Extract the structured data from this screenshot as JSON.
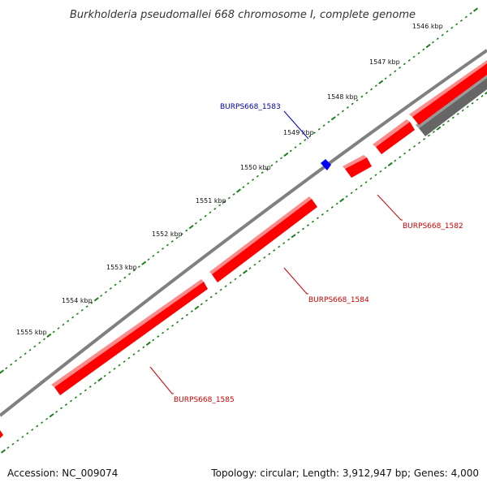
{
  "title": "Burkholderia pseudomallei 668 chromosome I, complete genome",
  "scale_labels": [
    "1546 kbp",
    "1547 kbp",
    "1548 kbp",
    "1549 kbp",
    "1550 kbp",
    "1551 kbp",
    "1552 kbp",
    "1553 kbp",
    "1554 kbp",
    "1555 kbp"
  ],
  "genes": [
    {
      "id": "BURPS668_1582",
      "strand": "reverse",
      "color": "#ff0000"
    },
    {
      "id": "BURPS668_1583",
      "strand": "forward",
      "color": "#0000ff"
    },
    {
      "id": "BURPS668_1584",
      "strand": "reverse",
      "color": "#ff0000"
    },
    {
      "id": "BURPS668_1585",
      "strand": "reverse",
      "color": "#ff0000"
    }
  ],
  "colors": {
    "backbone": "#808080",
    "tick": "#1a7f1a",
    "reverse_gene": "#ff0000",
    "forward_gene": "#0000ff",
    "other_feature": "#666666"
  },
  "footer": {
    "accession": "Accession: NC_009074",
    "topology": "Topology: circular; Length: 3,912,947 bp; Genes: 4,000"
  }
}
